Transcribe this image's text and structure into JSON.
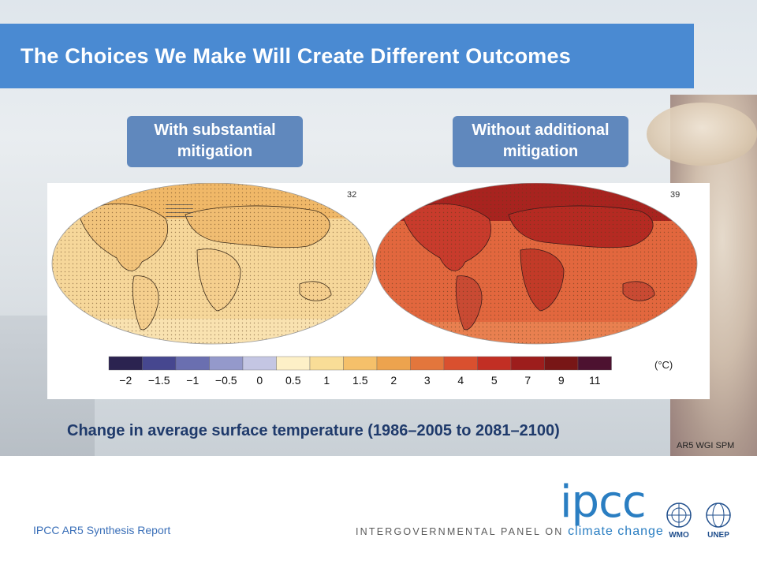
{
  "slide": {
    "title": "The Choices We Make Will Create Different Outcomes",
    "left_label": "With substantial mitigation",
    "right_label": "Without additional mitigation",
    "caption": "Change in average surface temperature (1986–2005 to 2081–2100)",
    "source": "AR5 WGI SPM",
    "footer": "IPCC AR5 Synthesis Report"
  },
  "chart_data": [
    {
      "type": "heatmap",
      "title": "With substantial mitigation",
      "models_count": "32",
      "map": "world temperature change (low emissions)"
    },
    {
      "type": "heatmap",
      "title": "Without additional mitigation",
      "models_count": "39",
      "map": "world temperature change (high emissions)"
    }
  ],
  "colorbar": {
    "unit": "(°C)",
    "ticks": [
      "−2",
      "−1.5",
      "−1",
      "−0.5",
      "0",
      "0.5",
      "1",
      "1.5",
      "2",
      "3",
      "4",
      "5",
      "7",
      "9",
      "11"
    ],
    "colors": [
      "#2b2350",
      "#46478f",
      "#6a6fb0",
      "#9499cb",
      "#c4c6e3",
      "#fdf0c7",
      "#f9dd97",
      "#f5c06a",
      "#eda34e",
      "#e3763c",
      "#d9502f",
      "#c22f24",
      "#9d1d1c",
      "#781616",
      "#4d1230"
    ]
  },
  "logo": {
    "ipcc": "ipcc",
    "sub_prefix": "INTERGOVERNMENTAL PANEL ON",
    "sub_suffix": "climate change",
    "wmo": "WMO",
    "unep": "UNEP"
  }
}
